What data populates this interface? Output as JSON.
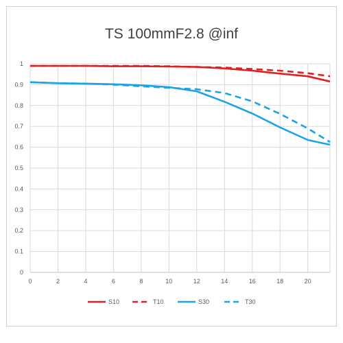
{
  "chart_data": {
    "type": "line",
    "title": "TS 100mmF2.8 @inf",
    "xlabel": "",
    "ylabel": "",
    "xlim": [
      0,
      21.6
    ],
    "ylim": [
      0,
      1
    ],
    "x_ticks": [
      0,
      2,
      4,
      6,
      8,
      10,
      12,
      14,
      16,
      18,
      20
    ],
    "y_ticks": [
      0,
      0.1,
      0.2,
      0.3,
      0.4,
      0.5,
      0.6,
      0.7,
      0.8,
      0.9,
      1
    ],
    "x_tick_labels": [
      "0",
      "2",
      "4",
      "6",
      "8",
      "10",
      "12",
      "14",
      "16",
      "18",
      "20"
    ],
    "y_tick_labels": [
      "0",
      "0.1",
      "0.2",
      "0.3",
      "0.4",
      "0.5",
      "0.6",
      "0.7",
      "0.8",
      "0.9",
      "1"
    ],
    "grid": true,
    "legend_position": "bottom",
    "series": [
      {
        "name": "S10",
        "color": "#e02020",
        "dash": "solid",
        "x": [
          0,
          2,
          4,
          6,
          8,
          10,
          12,
          14,
          16,
          18,
          20,
          21.6
        ],
        "y": [
          0.99,
          0.99,
          0.99,
          0.988,
          0.988,
          0.987,
          0.985,
          0.978,
          0.967,
          0.953,
          0.94,
          0.915
        ]
      },
      {
        "name": "T10",
        "color": "#e02020",
        "dash": "dashed",
        "x": [
          0,
          2,
          4,
          6,
          8,
          10,
          12,
          14,
          16,
          18,
          20,
          21.6
        ],
        "y": [
          0.99,
          0.99,
          0.99,
          0.99,
          0.99,
          0.988,
          0.985,
          0.982,
          0.975,
          0.967,
          0.955,
          0.94
        ]
      },
      {
        "name": "S30",
        "color": "#1aa3e6",
        "dash": "solid",
        "x": [
          0,
          2,
          4,
          6,
          8,
          10,
          12,
          14,
          16,
          18,
          20,
          21.6
        ],
        "y": [
          0.912,
          0.907,
          0.905,
          0.902,
          0.897,
          0.888,
          0.868,
          0.818,
          0.762,
          0.695,
          0.635,
          0.612
        ]
      },
      {
        "name": "T30",
        "color": "#1aa3e6",
        "dash": "dashed",
        "x": [
          0,
          2,
          4,
          6,
          8,
          10,
          12,
          14,
          16,
          18,
          20,
          21.6
        ],
        "y": [
          0.912,
          0.907,
          0.905,
          0.9,
          0.892,
          0.885,
          0.878,
          0.86,
          0.82,
          0.76,
          0.69,
          0.625
        ]
      }
    ]
  }
}
